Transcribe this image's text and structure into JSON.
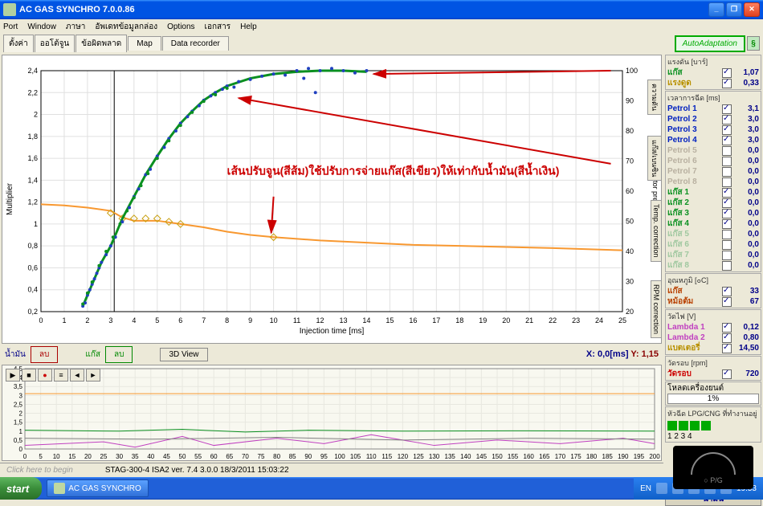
{
  "window": {
    "title": "AC GAS SYNCHRO   7.0.0.86"
  },
  "menu": [
    "Port",
    "Window",
    "ภาษา",
    "อัพเดทข้อมูลกล่อง",
    "Options",
    "เอกสาร",
    "Help"
  ],
  "tabs": {
    "items": [
      "ตั้งค่า",
      "ออโต้จูน",
      "ข้อผิดพลาด",
      "Map",
      "Data recorder"
    ],
    "auto": "AutoAdaptation"
  },
  "chart": {
    "xlabel": "Injection time [ms]",
    "ylabel_left": "Multiplier",
    "ylabel_right": "Collector pressure [kPa]",
    "x_ticks": [
      0,
      1,
      2,
      3,
      4,
      5,
      6,
      7,
      8,
      9,
      10,
      11,
      12,
      13,
      14,
      15,
      16,
      17,
      18,
      19,
      20,
      21,
      22,
      23,
      24,
      25
    ],
    "y_left_ticks": [
      0.2,
      0.4,
      0.6,
      0.8,
      1,
      1.2,
      1.4,
      1.6,
      1.8,
      2,
      2.2,
      2.4
    ],
    "y_right_ticks": [
      20,
      30,
      40,
      50,
      60,
      70,
      80,
      90,
      100
    ],
    "green_curve": [
      [
        1.8,
        0.25
      ],
      [
        2.0,
        0.35
      ],
      [
        2.3,
        0.5
      ],
      [
        2.6,
        0.65
      ],
      [
        3.0,
        0.8
      ],
      [
        3.5,
        1.05
      ],
      [
        4.0,
        1.25
      ],
      [
        4.5,
        1.45
      ],
      [
        5.0,
        1.62
      ],
      [
        5.5,
        1.78
      ],
      [
        6.0,
        1.92
      ],
      [
        6.5,
        2.03
      ],
      [
        7.0,
        2.13
      ],
      [
        7.5,
        2.2
      ],
      [
        8.0,
        2.26
      ],
      [
        9.0,
        2.33
      ],
      [
        10.0,
        2.37
      ],
      [
        11.0,
        2.39
      ],
      [
        12.0,
        2.4
      ],
      [
        13.0,
        2.4
      ],
      [
        14.0,
        2.39
      ]
    ],
    "orange_curve": [
      [
        0,
        1.18
      ],
      [
        1,
        1.17
      ],
      [
        2,
        1.15
      ],
      [
        3,
        1.12
      ],
      [
        3.5,
        1.06
      ],
      [
        4,
        1.03
      ],
      [
        5,
        1.03
      ],
      [
        6,
        1.0
      ],
      [
        7,
        0.97
      ],
      [
        8,
        0.93
      ],
      [
        9,
        0.9
      ],
      [
        10,
        0.88
      ],
      [
        12,
        0.85
      ],
      [
        14,
        0.83
      ],
      [
        16,
        0.81
      ],
      [
        18,
        0.8
      ],
      [
        20,
        0.79
      ],
      [
        22,
        0.78
      ],
      [
        25,
        0.76
      ]
    ],
    "orange_markers": [
      [
        3.0,
        1.1
      ],
      [
        3.5,
        1.05
      ],
      [
        4.0,
        1.05
      ],
      [
        4.5,
        1.05
      ],
      [
        5.0,
        1.05
      ],
      [
        5.5,
        1.02
      ],
      [
        6.0,
        1.0
      ],
      [
        10.0,
        0.88
      ]
    ],
    "blue_points": [
      [
        1.8,
        0.25
      ],
      [
        1.9,
        0.28
      ],
      [
        2.0,
        0.35
      ],
      [
        2.1,
        0.4
      ],
      [
        2.2,
        0.45
      ],
      [
        2.3,
        0.5
      ],
      [
        2.4,
        0.55
      ],
      [
        2.5,
        0.6
      ],
      [
        2.6,
        0.65
      ],
      [
        2.8,
        0.72
      ],
      [
        3.0,
        0.8
      ],
      [
        3.2,
        0.88
      ],
      [
        3.5,
        1.02
      ],
      [
        3.8,
        1.15
      ],
      [
        4.0,
        1.25
      ],
      [
        4.2,
        1.32
      ],
      [
        4.5,
        1.45
      ],
      [
        4.7,
        1.5
      ],
      [
        5.0,
        1.62
      ],
      [
        5.3,
        1.7
      ],
      [
        5.5,
        1.78
      ],
      [
        5.8,
        1.85
      ],
      [
        6.0,
        1.92
      ],
      [
        6.3,
        1.98
      ],
      [
        6.5,
        2.03
      ],
      [
        6.8,
        2.08
      ],
      [
        7.0,
        2.13
      ],
      [
        7.3,
        2.17
      ],
      [
        7.5,
        2.2
      ],
      [
        7.8,
        2.23
      ],
      [
        8.0,
        2.26
      ],
      [
        8.3,
        2.25
      ],
      [
        8.5,
        2.3
      ],
      [
        9.0,
        2.32
      ],
      [
        9.5,
        2.35
      ],
      [
        10.0,
        2.37
      ],
      [
        10.5,
        2.36
      ],
      [
        11.0,
        2.4
      ],
      [
        11.3,
        2.33
      ],
      [
        11.5,
        2.42
      ],
      [
        11.8,
        2.2
      ],
      [
        12.0,
        2.4
      ],
      [
        12.5,
        2.42
      ],
      [
        13.0,
        2.4
      ],
      [
        13.5,
        2.38
      ],
      [
        14.0,
        2.4
      ]
    ],
    "green_points": [
      [
        1.8,
        0.27
      ],
      [
        2.0,
        0.37
      ],
      [
        2.2,
        0.47
      ],
      [
        2.5,
        0.62
      ],
      [
        2.8,
        0.75
      ],
      [
        3.1,
        0.88
      ],
      [
        3.4,
        1.0
      ],
      [
        3.7,
        1.12
      ],
      [
        4.0,
        1.24
      ],
      [
        4.3,
        1.35
      ],
      [
        4.6,
        1.46
      ],
      [
        5.0,
        1.6
      ],
      [
        5.5,
        1.76
      ],
      [
        6.0,
        1.9
      ],
      [
        6.5,
        2.02
      ],
      [
        7.0,
        2.12
      ],
      [
        7.5,
        2.18
      ],
      [
        8.0,
        2.24
      ]
    ],
    "vline_x": 3.15,
    "annotation": "เส้นปรับจูน(สีส้ม)ใช้ปรับการจ่ายแก๊ส(สีเขียว)ให้เท่ากับน้ำมัน(สีน้ำเงิน)",
    "annotation_color": "#cc0000",
    "arrows": [
      {
        "from": [
          24.5,
          2.4
        ],
        "to": [
          14.3,
          2.37
        ]
      },
      {
        "from": [
          24.5,
          1.55
        ],
        "to": [
          8.5,
          2.15
        ]
      },
      {
        "from": [
          10.0,
          1.25
        ],
        "to": [
          9.9,
          0.92
        ]
      }
    ],
    "colors": {
      "green": "#0a9020",
      "orange": "#f89830",
      "blue": "#2040c0",
      "marker": "#c8a010",
      "bg": "#ffffff",
      "grid": "#e0e0e0",
      "axis": "#000"
    }
  },
  "chart_controls": {
    "fuel_label": "น้ำมัน",
    "delete1": "ลบ",
    "gas_label": "แก๊ส",
    "delete2": "ลบ",
    "view3d": "3D View",
    "coord_x": "X:  0,0[ms]",
    "coord_y": "Y: 1,15"
  },
  "strip": {
    "y_ticks": [
      "4,5",
      "4",
      "3,5",
      "3",
      "2,5",
      "2",
      "1,5",
      "1",
      "0,5",
      "0"
    ],
    "x_ticks": [
      0,
      5,
      10,
      15,
      20,
      25,
      30,
      35,
      40,
      45,
      50,
      55,
      60,
      65,
      70,
      75,
      80,
      85,
      90,
      95,
      100,
      105,
      110,
      115,
      120,
      125,
      130,
      135,
      140,
      145,
      150,
      155,
      160,
      165,
      170,
      175,
      180,
      185,
      190,
      195,
      200
    ]
  },
  "status": {
    "hint": "Click here to begin",
    "model": "STAG-300-4 ISA2   ver. 7.4  3.0.0    18/3/2011 15:03:22"
  },
  "taskbar": {
    "start": "start",
    "task": "AC GAS SYNCHRO",
    "lang": "EN",
    "time": "19:53"
  },
  "right_panel": {
    "pressure": {
      "hdr": "แรงดัน  [บาร์]",
      "rows": [
        {
          "lbl": "แก๊ส",
          "color": "#0a9020",
          "chk": true,
          "val": "1,07"
        },
        {
          "lbl": "แรงดูด",
          "color": "#b89000",
          "chk": true,
          "val": "0,33"
        }
      ]
    },
    "inj_time": {
      "hdr": "เวลาการฉีด [ms]",
      "rows": [
        {
          "lbl": "Petrol 1",
          "color": "#0020c0",
          "chk": true,
          "val": "3,1"
        },
        {
          "lbl": "Petrol 2",
          "color": "#0020c0",
          "chk": true,
          "val": "3,0"
        },
        {
          "lbl": "Petrol 3",
          "color": "#0020c0",
          "chk": true,
          "val": "3,0"
        },
        {
          "lbl": "Petrol 4",
          "color": "#0020c0",
          "chk": true,
          "val": "3,0"
        },
        {
          "lbl": "Petrol 5",
          "color": "#b8b0a0",
          "chk": false,
          "val": "0,0"
        },
        {
          "lbl": "Petrol 6",
          "color": "#b8b0a0",
          "chk": false,
          "val": "0,0"
        },
        {
          "lbl": "Petrol 7",
          "color": "#b8b0a0",
          "chk": false,
          "val": "0,0"
        },
        {
          "lbl": "Petrol 8",
          "color": "#b8b0a0",
          "chk": false,
          "val": "0,0"
        },
        {
          "lbl": "แก๊ส 1",
          "color": "#0a9020",
          "chk": true,
          "val": "0,0"
        },
        {
          "lbl": "แก๊ส 2",
          "color": "#0a9020",
          "chk": true,
          "val": "0,0"
        },
        {
          "lbl": "แก๊ส 3",
          "color": "#0a9020",
          "chk": true,
          "val": "0,0"
        },
        {
          "lbl": "แก๊ส 4",
          "color": "#0a9020",
          "chk": true,
          "val": "0,0"
        },
        {
          "lbl": "แก๊ส 5",
          "color": "#a0c8a0",
          "chk": false,
          "val": "0,0"
        },
        {
          "lbl": "แก๊ส 6",
          "color": "#a0c8a0",
          "chk": false,
          "val": "0,0"
        },
        {
          "lbl": "แก๊ส 7",
          "color": "#a0c8a0",
          "chk": false,
          "val": "0,0"
        },
        {
          "lbl": "แก๊ส 8",
          "color": "#a0c8a0",
          "chk": false,
          "val": "0,0"
        }
      ]
    },
    "temp": {
      "hdr": "อุณหภูมิ  [๐C]",
      "rows": [
        {
          "lbl": "แก๊ส",
          "color": "#b84000",
          "chk": true,
          "val": "33"
        },
        {
          "lbl": "หม้อต้ม",
          "color": "#b84000",
          "chk": true,
          "val": "67"
        }
      ]
    },
    "volt": {
      "hdr": "วัดไฟ [V]",
      "rows": [
        {
          "lbl": "Lambda 1",
          "color": "#c040c0",
          "chk": true,
          "val": "0,12"
        },
        {
          "lbl": "Lambda 2",
          "color": "#c040c0",
          "chk": true,
          "val": "0,80"
        },
        {
          "lbl": "แบตเตอรี่",
          "color": "#b89000",
          "chk": true,
          "val": "14,50"
        }
      ]
    },
    "rpm": {
      "hdr": "วัดรอบ  [rpm]",
      "rows": [
        {
          "lbl": "วัดรอบ",
          "color": "#cc0000",
          "chk": true,
          "val": "720"
        }
      ]
    },
    "load": {
      "lbl": "โหลดเครื่องยนต์",
      "val": "1%"
    },
    "lpg_hdr": "หัวฉีด LPG/CNG ที่ทำงานอยู่",
    "lpg_nums": "1  2  3  4",
    "fuel_label": "น้ำมัน",
    "panel_txt": "○ P/G"
  }
}
